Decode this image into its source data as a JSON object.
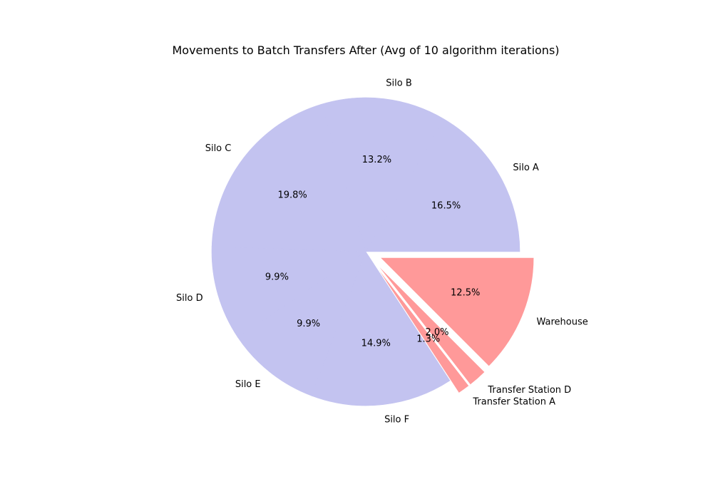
{
  "chart_data": {
    "type": "pie",
    "title": "Movements to Batch Transfers After (Avg of 10 algorithm iterations)",
    "start_angle_deg": 0,
    "direction": "counterclockwise",
    "slices": [
      {
        "label": "Silo A",
        "value": 16.5,
        "pct_label": "16.5%",
        "color": "#c3c3f0",
        "exploded": false
      },
      {
        "label": "Silo B",
        "value": 13.2,
        "pct_label": "13.2%",
        "color": "#c3c3f0",
        "exploded": false
      },
      {
        "label": "Silo C",
        "value": 19.8,
        "pct_label": "19.8%",
        "color": "#c3c3f0",
        "exploded": false
      },
      {
        "label": "Silo D",
        "value": 9.9,
        "pct_label": "9.9%",
        "color": "#c3c3f0",
        "exploded": false
      },
      {
        "label": "Silo E",
        "value": 9.9,
        "pct_label": "9.9%",
        "color": "#c3c3f0",
        "exploded": false
      },
      {
        "label": "Silo F",
        "value": 14.9,
        "pct_label": "14.9%",
        "color": "#c3c3f0",
        "exploded": false
      },
      {
        "label": "Transfer Station A",
        "value": 1.3,
        "pct_label": "1.3%",
        "color": "#ff9999",
        "exploded": true
      },
      {
        "label": "Transfer Station D",
        "value": 2.0,
        "pct_label": "2.0%",
        "color": "#ff9999",
        "exploded": true
      },
      {
        "label": "Warehouse",
        "value": 12.5,
        "pct_label": "12.5%",
        "color": "#ff9999",
        "exploded": true
      }
    ]
  }
}
